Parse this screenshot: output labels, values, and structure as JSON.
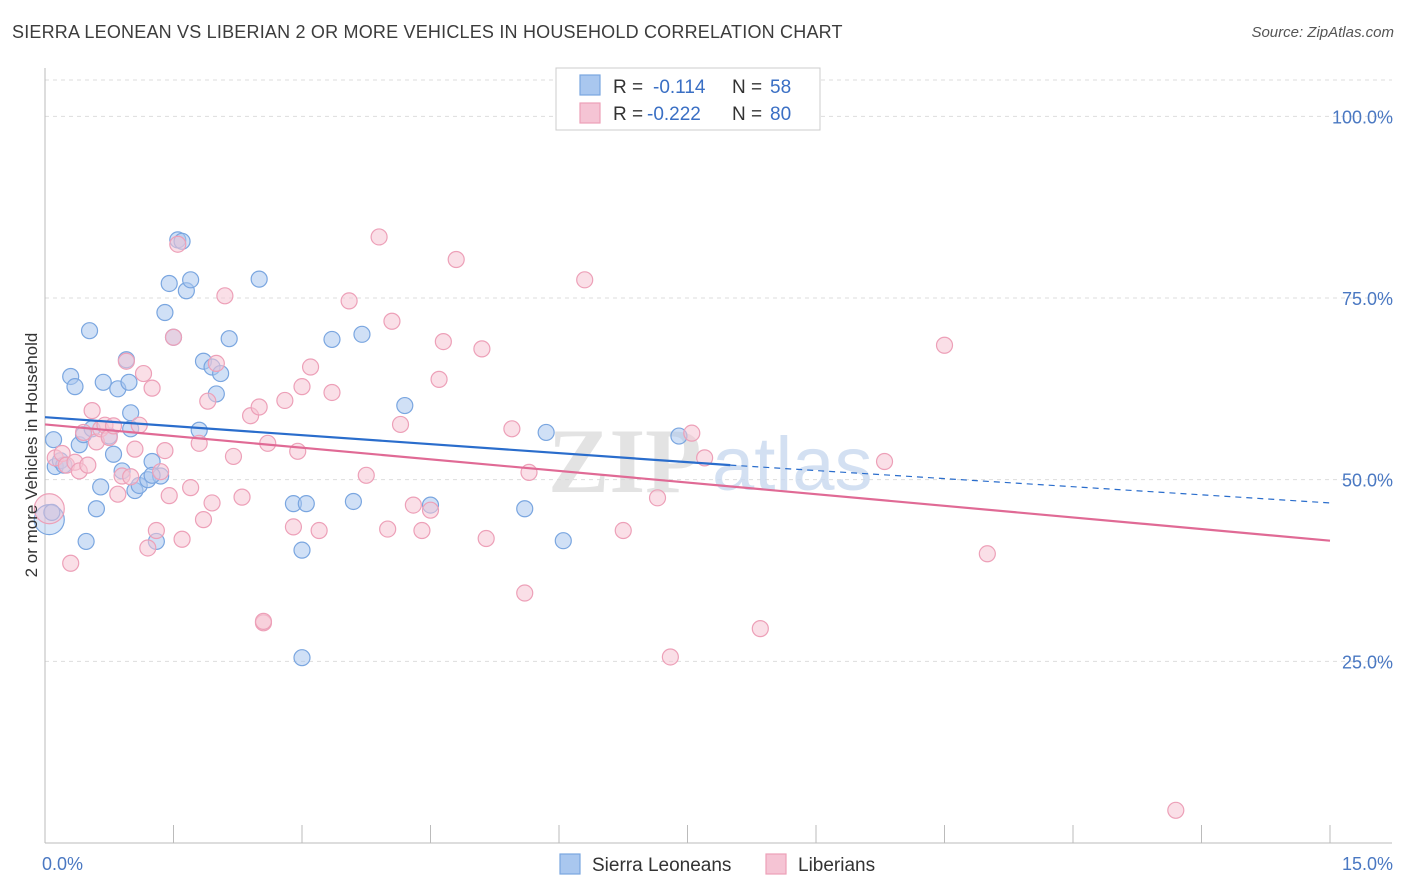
{
  "title": "SIERRA LEONEAN VS LIBERIAN 2 OR MORE VEHICLES IN HOUSEHOLD CORRELATION CHART",
  "source": "Source: ZipAtlas.com",
  "chart_data": {
    "type": "scatter",
    "ylabel": "2 or more Vehicles in Household",
    "xlim": [
      0,
      15
    ],
    "ylim": [
      0,
      105
    ],
    "x_tick_labels": {
      "min": "0.0%",
      "max": "15.0%"
    },
    "y_ticks": [
      {
        "value": 100,
        "label": "100.0%"
      },
      {
        "value": 75,
        "label": "75.0%"
      },
      {
        "value": 50,
        "label": "50.0%"
      },
      {
        "value": 25,
        "label": "25.0%"
      }
    ],
    "grid": true,
    "legend": {
      "position": "top-center",
      "entries": [
        {
          "r_label": "R =",
          "r_value": "-0.114",
          "n_label": "N =",
          "n_value": "58"
        },
        {
          "r_label": "R =",
          "r_value": "-0.222",
          "n_label": "N =",
          "n_value": "80"
        }
      ]
    },
    "series": [
      {
        "name": "Sierra Leoneans",
        "color": "#7aa6e0",
        "fill": "#a9c7ef",
        "line_color": "#2a6dcc",
        "trend": {
          "x0": 0,
          "y0": 58.6,
          "x1": 8.0,
          "y1": 52.0,
          "dash_to_x": 15,
          "dash_to_y": 46.8
        },
        "points": [
          [
            0.05,
            44.5
          ],
          [
            0.1,
            55.5
          ],
          [
            0.12,
            51.8
          ],
          [
            0.18,
            52.6
          ],
          [
            0.22,
            52.0
          ],
          [
            0.3,
            64.2
          ],
          [
            0.35,
            62.8
          ],
          [
            0.4,
            54.8
          ],
          [
            0.45,
            56.2
          ],
          [
            0.48,
            41.5
          ],
          [
            0.52,
            70.5
          ],
          [
            0.6,
            46.0
          ],
          [
            0.65,
            49.0
          ],
          [
            0.68,
            63.4
          ],
          [
            0.75,
            56.0
          ],
          [
            0.8,
            53.5
          ],
          [
            0.85,
            62.5
          ],
          [
            0.9,
            51.2
          ],
          [
            0.95,
            66.5
          ],
          [
            0.98,
            63.4
          ],
          [
            1.0,
            59.2
          ],
          [
            1.05,
            48.5
          ],
          [
            1.1,
            49.2
          ],
          [
            1.2,
            50.0
          ],
          [
            1.25,
            52.5
          ],
          [
            1.3,
            41.5
          ],
          [
            1.35,
            50.5
          ],
          [
            1.4,
            73.0
          ],
          [
            1.45,
            77.0
          ],
          [
            1.5,
            69.6
          ],
          [
            1.55,
            83.0
          ],
          [
            1.6,
            82.8
          ],
          [
            1.65,
            76.0
          ],
          [
            1.7,
            77.5
          ],
          [
            1.8,
            56.8
          ],
          [
            1.85,
            66.3
          ],
          [
            1.95,
            65.5
          ],
          [
            2.0,
            61.8
          ],
          [
            2.05,
            64.6
          ],
          [
            2.15,
            69.4
          ],
          [
            2.5,
            77.6
          ],
          [
            2.9,
            46.7
          ],
          [
            3.0,
            40.3
          ],
          [
            3.05,
            46.7
          ],
          [
            3.0,
            25.5
          ],
          [
            3.35,
            69.3
          ],
          [
            3.6,
            47.0
          ],
          [
            3.7,
            70.0
          ],
          [
            4.2,
            60.2
          ],
          [
            4.5,
            46.5
          ],
          [
            5.6,
            46.0
          ],
          [
            5.85,
            56.5
          ],
          [
            6.05,
            41.6
          ],
          [
            7.4,
            56.0
          ],
          [
            0.08,
            45.5
          ],
          [
            1.0,
            57.0
          ],
          [
            0.55,
            57.0
          ],
          [
            1.25,
            50.6
          ]
        ]
      },
      {
        "name": "Liberians",
        "color": "#eda0b8",
        "fill": "#f5c4d4",
        "line_color": "#e06a95",
        "trend": {
          "x0": 0,
          "y0": 57.6,
          "x1": 15,
          "y1": 41.6
        },
        "points": [
          [
            0.05,
            46.0
          ],
          [
            0.12,
            53.0
          ],
          [
            0.2,
            53.6
          ],
          [
            0.25,
            52.0
          ],
          [
            0.3,
            38.5
          ],
          [
            0.35,
            52.4
          ],
          [
            0.4,
            51.2
          ],
          [
            0.45,
            56.5
          ],
          [
            0.5,
            52.0
          ],
          [
            0.55,
            59.5
          ],
          [
            0.6,
            55.2
          ],
          [
            0.65,
            57.0
          ],
          [
            0.7,
            57.5
          ],
          [
            0.75,
            55.8
          ],
          [
            0.8,
            57.4
          ],
          [
            0.85,
            48.0
          ],
          [
            0.9,
            50.5
          ],
          [
            0.95,
            66.3
          ],
          [
            1.0,
            50.4
          ],
          [
            1.05,
            54.2
          ],
          [
            1.1,
            57.5
          ],
          [
            1.15,
            64.6
          ],
          [
            1.2,
            40.6
          ],
          [
            1.25,
            62.6
          ],
          [
            1.3,
            43.0
          ],
          [
            1.35,
            51.1
          ],
          [
            1.4,
            54.0
          ],
          [
            1.45,
            47.8
          ],
          [
            1.5,
            69.6
          ],
          [
            1.55,
            82.4
          ],
          [
            1.6,
            41.8
          ],
          [
            1.7,
            48.9
          ],
          [
            1.8,
            55.0
          ],
          [
            1.85,
            44.5
          ],
          [
            1.9,
            60.8
          ],
          [
            1.95,
            46.8
          ],
          [
            2.0,
            66.0
          ],
          [
            2.1,
            75.3
          ],
          [
            2.2,
            53.2
          ],
          [
            2.3,
            47.6
          ],
          [
            2.4,
            58.8
          ],
          [
            2.5,
            60.0
          ],
          [
            2.55,
            30.3
          ],
          [
            2.6,
            55.0
          ],
          [
            2.8,
            60.9
          ],
          [
            2.9,
            43.5
          ],
          [
            2.95,
            53.9
          ],
          [
            3.0,
            62.8
          ],
          [
            3.1,
            65.5
          ],
          [
            3.2,
            43.0
          ],
          [
            3.35,
            62.0
          ],
          [
            3.55,
            74.6
          ],
          [
            3.75,
            50.6
          ],
          [
            3.9,
            83.4
          ],
          [
            4.0,
            43.2
          ],
          [
            4.05,
            71.8
          ],
          [
            4.15,
            57.6
          ],
          [
            4.3,
            46.5
          ],
          [
            4.4,
            43.0
          ],
          [
            4.5,
            45.8
          ],
          [
            4.6,
            63.8
          ],
          [
            4.65,
            69.0
          ],
          [
            4.8,
            80.3
          ],
          [
            5.1,
            68.0
          ],
          [
            5.15,
            41.9
          ],
          [
            5.45,
            57.0
          ],
          [
            5.6,
            34.4
          ],
          [
            5.65,
            51.0
          ],
          [
            6.3,
            77.5
          ],
          [
            6.75,
            43.0
          ],
          [
            7.15,
            47.5
          ],
          [
            7.3,
            25.6
          ],
          [
            7.55,
            56.4
          ],
          [
            7.7,
            53.0
          ],
          [
            8.35,
            29.5
          ],
          [
            9.8,
            52.5
          ],
          [
            10.5,
            68.5
          ],
          [
            11.0,
            39.8
          ],
          [
            13.2,
            4.5
          ],
          [
            2.55,
            30.5
          ]
        ]
      }
    ]
  },
  "bottom_legend": [
    "Sierra Leoneans",
    "Liberians"
  ],
  "watermark": {
    "zip": "ZIP",
    "atlas": "atlas"
  }
}
